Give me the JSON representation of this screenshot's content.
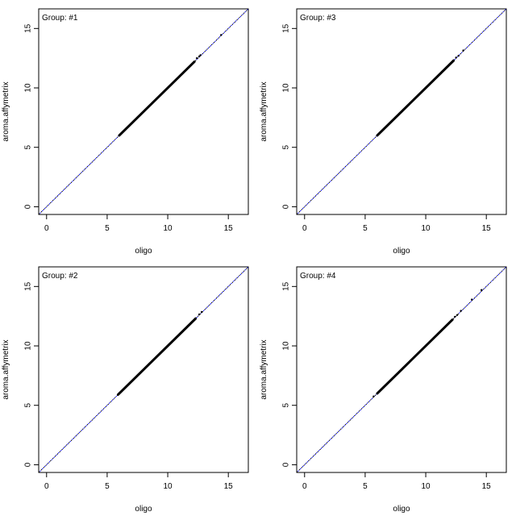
{
  "chart_data": [
    {
      "type": "scatter",
      "title": "Group: #1",
      "xlabel": "oligo",
      "ylabel": "aroma.affymetrix",
      "xlim": [
        -0.65,
        16.65
      ],
      "ylim": [
        -0.65,
        16.65
      ],
      "xticks": [
        0,
        5,
        10,
        15
      ],
      "yticks": [
        0,
        5,
        10,
        15
      ],
      "reference_line": "y = x",
      "dense_range": [
        6.0,
        12.2
      ],
      "points": [
        [
          12.4,
          12.5
        ],
        [
          12.6,
          12.65
        ],
        [
          12.7,
          12.75
        ],
        [
          14.4,
          14.45
        ]
      ]
    },
    {
      "type": "scatter",
      "title": "Group: #3",
      "xlabel": "oligo",
      "ylabel": "aroma.affymetrix",
      "xlim": [
        -0.65,
        16.65
      ],
      "ylim": [
        -0.65,
        16.65
      ],
      "xticks": [
        0,
        5,
        10,
        15
      ],
      "yticks": [
        0,
        5,
        10,
        15
      ],
      "reference_line": "y = x",
      "dense_range": [
        6.0,
        12.3
      ],
      "points": [
        [
          12.5,
          12.55
        ],
        [
          12.7,
          12.7
        ],
        [
          13.1,
          13.15
        ]
      ]
    },
    {
      "type": "scatter",
      "title": "Group: #2",
      "xlabel": "oligo",
      "ylabel": "aroma.affymetrix",
      "xlim": [
        -0.65,
        16.65
      ],
      "ylim": [
        -0.65,
        16.65
      ],
      "xticks": [
        0,
        5,
        10,
        15
      ],
      "yticks": [
        0,
        5,
        10,
        15
      ],
      "reference_line": "y = x",
      "dense_range": [
        5.9,
        12.3
      ],
      "points": [
        [
          12.6,
          12.65
        ],
        [
          12.8,
          12.85
        ]
      ]
    },
    {
      "type": "scatter",
      "title": "Group: #4",
      "xlabel": "oligo",
      "ylabel": "aroma.affymetrix",
      "xlim": [
        -0.65,
        16.65
      ],
      "ylim": [
        -0.65,
        16.65
      ],
      "xticks": [
        0,
        5,
        10,
        15
      ],
      "yticks": [
        0,
        5,
        10,
        15
      ],
      "reference_line": "y = x",
      "dense_range": [
        6.0,
        12.2
      ],
      "points": [
        [
          5.7,
          5.75
        ],
        [
          12.4,
          12.45
        ],
        [
          12.6,
          12.6
        ],
        [
          12.9,
          12.95
        ],
        [
          13.8,
          13.9
        ],
        [
          14.6,
          14.7
        ]
      ]
    }
  ]
}
